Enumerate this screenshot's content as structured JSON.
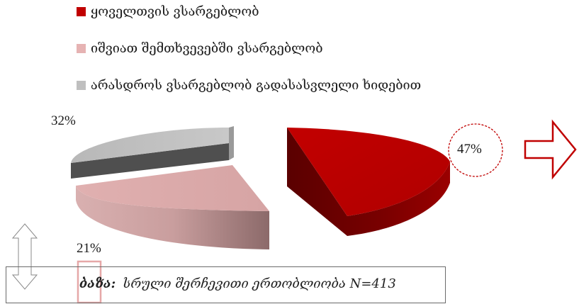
{
  "legend": [
    {
      "label": "ყოველთვის ვსარგებლობ",
      "color": "#c00000"
    },
    {
      "label": "იშვიათ შემთხვევებში ვსარგებლობ",
      "color": "#e6b3b3"
    },
    {
      "label": "არასდროს ვსარგებლობ გადასასვლელი ხიდებით",
      "color": "#bfbfbf"
    }
  ],
  "labels": {
    "red": "47%",
    "gray": "32%",
    "pink": "21%"
  },
  "base": {
    "label": "ბაზა:",
    "text": "სრული შერჩევითი ერთობლიობა N=413"
  },
  "chart_data": {
    "type": "pie",
    "categories": [
      "ყოველთვის ვსარგებლობ",
      "იშვიათ შემთხვევებში ვსარგებლობ",
      "არასდროს ვსარგებლობ გადასასვლელი ხიდებით"
    ],
    "values": [
      47,
      21,
      32
    ],
    "unit": "%",
    "colors": [
      "#c00000",
      "#e6b3b3",
      "#bfbfbf"
    ]
  }
}
